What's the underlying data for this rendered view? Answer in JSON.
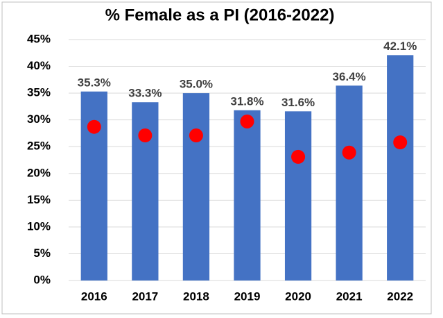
{
  "chart_data": {
    "type": "bar",
    "title": "% Female as a PI (2016-2022)",
    "categories": [
      "2016",
      "2017",
      "2018",
      "2019",
      "2020",
      "2021",
      "2022"
    ],
    "series": [
      {
        "type": "bar",
        "color": "#4472c4",
        "values": [
          35.3,
          33.3,
          35.0,
          31.8,
          31.6,
          36.4,
          42.1
        ],
        "value_labels": [
          "35.3%",
          "33.3%",
          "35.0%",
          "31.8%",
          "31.6%",
          "36.4%",
          "42.1%"
        ]
      },
      {
        "type": "scatter",
        "color": "#ff0000",
        "values": [
          28.7,
          27.1,
          27.1,
          29.7,
          23.1,
          23.9,
          25.8
        ]
      }
    ],
    "ylim": [
      0,
      45
    ],
    "yticks": [
      {
        "value": 0,
        "label": "0%"
      },
      {
        "value": 5,
        "label": "5%"
      },
      {
        "value": 10,
        "label": "10%"
      },
      {
        "value": 15,
        "label": "15%"
      },
      {
        "value": 20,
        "label": "20%"
      },
      {
        "value": 25,
        "label": "25%"
      },
      {
        "value": 30,
        "label": "30%"
      },
      {
        "value": 35,
        "label": "35%"
      },
      {
        "value": 40,
        "label": "40%"
      },
      {
        "value": 45,
        "label": "45%"
      }
    ],
    "grid": true
  }
}
